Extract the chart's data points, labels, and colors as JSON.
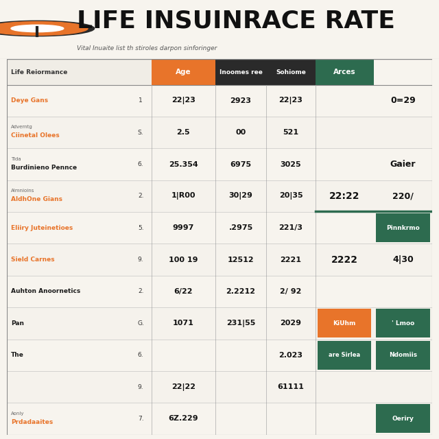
{
  "title": "LIFE INSUINRACE RATE",
  "subtitle": "Vital Inuaite list th stiroles darpon sinforinger",
  "header_labels": [
    "Life Reiormance",
    "Age",
    "Inoomes ree",
    "Sohiome",
    "Arces"
  ],
  "rows": [
    {
      "label": "Deye Gans",
      "num": "1",
      "col1": "22|23",
      "col2": "2923",
      "col3": "22|23",
      "extra1": "",
      "extra2": "0=29",
      "label_color": "#E8742A",
      "sub": ""
    },
    {
      "label": "Ciinetal Olees",
      "num": "S.",
      "col1": "2.5",
      "col2": "00",
      "col3": "521",
      "extra1": "",
      "extra2": "",
      "label_color": "#E8742A",
      "sub": "Adverntg"
    },
    {
      "label": "Burdinieno Pennce",
      "num": "6.",
      "col1": "25.354",
      "col2": "6975",
      "col3": "3025",
      "extra1": "",
      "extra2": "Gaier",
      "label_color": "#1A1A1A",
      "sub": "Tida"
    },
    {
      "label": "AldhOne Gians",
      "num": "2.",
      "col1": "1|R00",
      "col2": "30|29",
      "col3": "20|35",
      "extra1": "22:22",
      "extra2": "220/",
      "label_color": "#E8742A",
      "sub": "Almnioins"
    },
    {
      "label": "Eliiry Juteinetioes",
      "num": "5.",
      "col1": "9997",
      "col2": ".2975",
      "col3": "221/3",
      "extra1": "",
      "extra2": "Pinnkrmo",
      "label_color": "#E8742A",
      "sub": ""
    },
    {
      "label": "Sield Carnes",
      "num": "9.",
      "col1": "100 19",
      "col2": "12512",
      "col3": "2221",
      "extra1": "2222",
      "extra2": "4|30",
      "label_color": "#E8742A",
      "sub": ""
    },
    {
      "label": "Auhton Anoornetics",
      "num": "2.",
      "col1": "6/22",
      "col2": "2.2212",
      "col3": "2/ 92",
      "extra1": "",
      "extra2": "",
      "label_color": "#1A1A1A",
      "sub": ""
    },
    {
      "label": "Pan",
      "num": "G.",
      "col1": "1071",
      "col2": "231|55",
      "col3": "2029",
      "extra1": "KiUhm",
      "extra2": "' Lmoo",
      "label_color": "#1A1A1A",
      "sub": ""
    },
    {
      "label": "The",
      "num": "6.",
      "col1": "",
      "col2": "",
      "col3": "2.023",
      "extra1": "are Sirlea",
      "extra2": "Ndomiis",
      "label_color": "#1A1A1A",
      "sub": ""
    },
    {
      "label": "",
      "num": "9.",
      "col1": "22|22",
      "col2": "",
      "col3": "61111",
      "extra1": "",
      "extra2": "",
      "label_color": "#1A1A1A",
      "sub": ""
    },
    {
      "label": "Prdadaaites",
      "num": "7.",
      "col1": "6Z.229",
      "col2": "",
      "col3": "",
      "extra1": "",
      "extra2": "Oeriry",
      "label_color": "#E8742A",
      "sub": "Aonly"
    }
  ],
  "orange_color": "#E8742A",
  "green_color": "#2D6B4F",
  "dark_color": "#111111",
  "bg_color": "#F7F4EE"
}
